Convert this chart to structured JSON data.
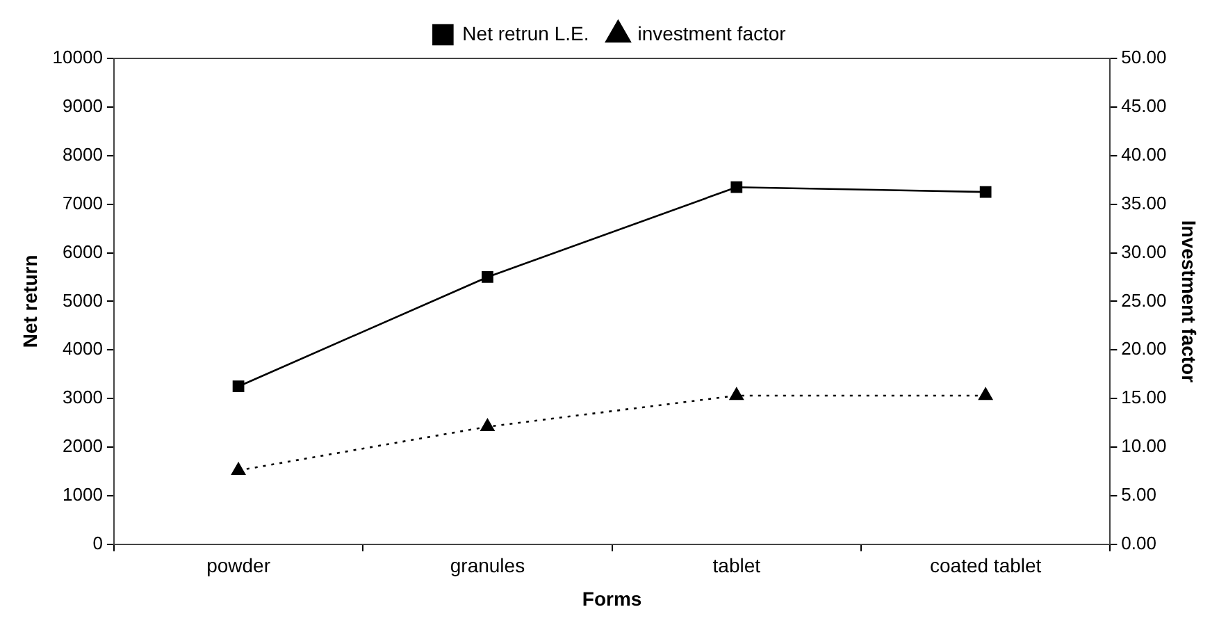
{
  "chart_data": {
    "type": "line",
    "xlabel": "Forms",
    "ylabel": "Net return",
    "y2label": "Investment factor",
    "categories": [
      "powder",
      "granules",
      "tablet",
      "coated tablet"
    ],
    "series": [
      {
        "name": "Net retrun L.E.",
        "color": "#000000",
        "marker": "square",
        "line_style": "solid",
        "values": [
          3250,
          5500,
          7350,
          7250
        ]
      },
      {
        "name": "investment factor",
        "color": "#000000",
        "marker": "triangle",
        "line_style": "dotted",
        "axis": "y2",
        "values": [
          7.6,
          12.1,
          15.3,
          15.3
        ]
      }
    ],
    "ylim": [
      0,
      10000
    ],
    "yticks": [
      0,
      1000,
      2000,
      3000,
      4000,
      5000,
      6000,
      7000,
      8000,
      9000,
      10000
    ],
    "y2lim": [
      0,
      50
    ],
    "y2ticks": [
      {
        "value": 0,
        "label": "0.00"
      },
      {
        "value": 5,
        "label": "5.00"
      },
      {
        "value": 10,
        "label": "10.00"
      },
      {
        "value": 15,
        "label": "15.00"
      },
      {
        "value": 20,
        "label": "20.00"
      },
      {
        "value": 25,
        "label": "25.00"
      },
      {
        "value": 30,
        "label": "30.00"
      },
      {
        "value": 35,
        "label": "35.00"
      },
      {
        "value": 40,
        "label": "40.00"
      },
      {
        "value": 45,
        "label": "45.00"
      },
      {
        "value": 50,
        "label": "50.00"
      }
    ],
    "grid": false,
    "legend": "top"
  }
}
